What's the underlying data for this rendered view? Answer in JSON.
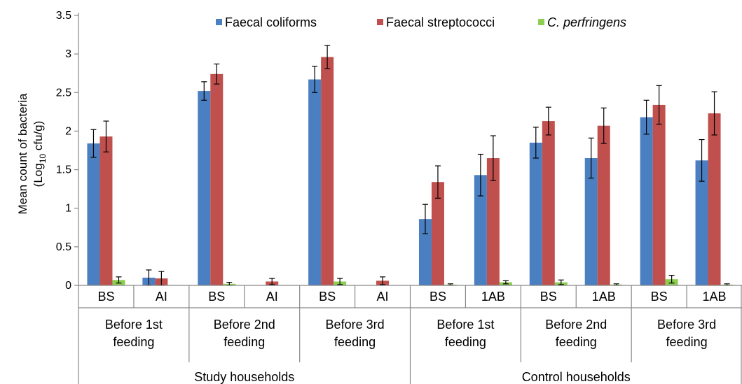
{
  "chart_data": {
    "type": "bar",
    "ylim": [
      0,
      3.5
    ],
    "yticks": [
      "0",
      "0.5",
      "1",
      "1.5",
      "2",
      "2.5",
      "3",
      "3.5"
    ],
    "ylabel_line1": "Mean count of bacteria",
    "ylabel_line2_prefix": "(Log",
    "ylabel_line2_sub": "10",
    "ylabel_line2_suffix": " cfu/g)",
    "xlabel": "",
    "legend_position": "top",
    "grid": false,
    "categories": [
      "BS",
      "AI",
      "BS",
      "AI",
      "BS",
      "AI",
      "BS",
      "1AB",
      "BS",
      "1AB",
      "BS",
      "1AB"
    ],
    "feeding_groups": [
      {
        "line1": "Before 1st",
        "line2": "feeding"
      },
      {
        "line1": "Before 2nd",
        "line2": "feeding"
      },
      {
        "line1": "Before 3rd",
        "line2": "feeding"
      },
      {
        "line1": "Before 1st",
        "line2": "feeding"
      },
      {
        "line1": "Before 2nd",
        "line2": "feeding"
      },
      {
        "line1": "Before 3rd",
        "line2": "feeding"
      }
    ],
    "household_groups": [
      "Study households",
      "Control households"
    ],
    "series": [
      {
        "name": "Faecal coliforms",
        "italic": false,
        "color": "#4a7fc1",
        "values": [
          1.84,
          0.1,
          2.52,
          0,
          2.67,
          0,
          0.86,
          1.43,
          1.85,
          1.65,
          2.18,
          1.62
        ],
        "errors": [
          0.18,
          0.1,
          0.12,
          0,
          0.17,
          0,
          0.19,
          0.27,
          0.2,
          0.26,
          0.22,
          0.27
        ]
      },
      {
        "name": "Faecal streptococci",
        "italic": false,
        "color": "#c0504d",
        "values": [
          1.93,
          0.09,
          2.74,
          0.05,
          2.96,
          0.06,
          1.34,
          1.65,
          2.13,
          2.07,
          2.34,
          2.23
        ],
        "errors": [
          0.2,
          0.09,
          0.13,
          0.04,
          0.15,
          0.05,
          0.21,
          0.29,
          0.18,
          0.23,
          0.25,
          0.28
        ]
      },
      {
        "name": "C. perfringens",
        "italic": true,
        "color": "#8ccf50",
        "values": [
          0.07,
          0,
          0.02,
          0,
          0.05,
          0,
          0.01,
          0.04,
          0.04,
          0.01,
          0.08,
          0.01
        ],
        "errors": [
          0.04,
          0,
          0.02,
          0,
          0.04,
          0,
          0.01,
          0.02,
          0.03,
          0.01,
          0.05,
          0.01
        ]
      }
    ]
  }
}
